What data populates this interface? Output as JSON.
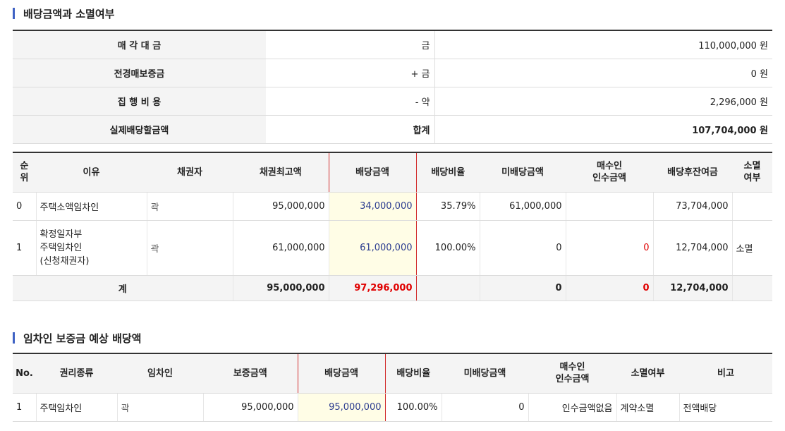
{
  "section1": {
    "title": "배당금액과 소멸여부",
    "rows": [
      {
        "label": "매 각 대 금",
        "prefix": "금",
        "amount": "110,000,000 원"
      },
      {
        "label": "전경매보증금",
        "prefix": "+ 금",
        "amount": "0 원"
      },
      {
        "label": "집 행 비 용",
        "prefix": "- 약",
        "amount": "2,296,000 원"
      },
      {
        "label": "실제배당할금액",
        "prefix": "합계",
        "amount": "107,704,000 원"
      }
    ]
  },
  "dist": {
    "headers": [
      "순\n위",
      "이유",
      "채권자",
      "채권최고액",
      "배당금액",
      "배당비율",
      "미배당금액",
      "매수인\n인수금액",
      "배당후잔여금",
      "소멸\n여부"
    ],
    "rows": [
      {
        "rank": "0",
        "reason": "주택소액임차인",
        "creditor": "곽",
        "claim": "95,000,000",
        "paid": "34,000,000",
        "ratio": "35.79%",
        "unpaid": "61,000,000",
        "buyer": "",
        "remain": "73,704,000",
        "extinct": ""
      },
      {
        "rank": "1",
        "reason": "확정일자부\n주택임차인\n(신청채권자)",
        "creditor": "곽",
        "claim": "61,000,000",
        "paid": "61,000,000",
        "ratio": "100.00%",
        "unpaid": "0",
        "buyer": "0",
        "remain": "12,704,000",
        "extinct": "소멸"
      }
    ],
    "total": {
      "label": "계",
      "claim": "95,000,000",
      "paid": "97,296,000",
      "unpaid": "0",
      "buyer": "0",
      "remain": "12,704,000"
    }
  },
  "section2": {
    "title": "임차인 보증금 예상 배당액"
  },
  "tenant": {
    "headers": [
      "No.",
      "권리종류",
      "임차인",
      "보증금액",
      "배당금액",
      "배당비율",
      "미배당금액",
      "매수인\n인수금액",
      "소멸여부",
      "비고"
    ],
    "rows": [
      {
        "no": "1",
        "type": "주택임차인",
        "tenant": "곽",
        "deposit": "95,000,000",
        "paid": "95,000,000",
        "ratio": "100.00%",
        "unpaid": "0",
        "buyer": "인수금액없음",
        "extinct": "계약소멸",
        "note": "전액배당"
      }
    ]
  },
  "colors": {
    "accent": "#3f62c4",
    "highlight": "#fffde6",
    "red": "#e00000",
    "amount_blue": "#2a3b8f"
  }
}
